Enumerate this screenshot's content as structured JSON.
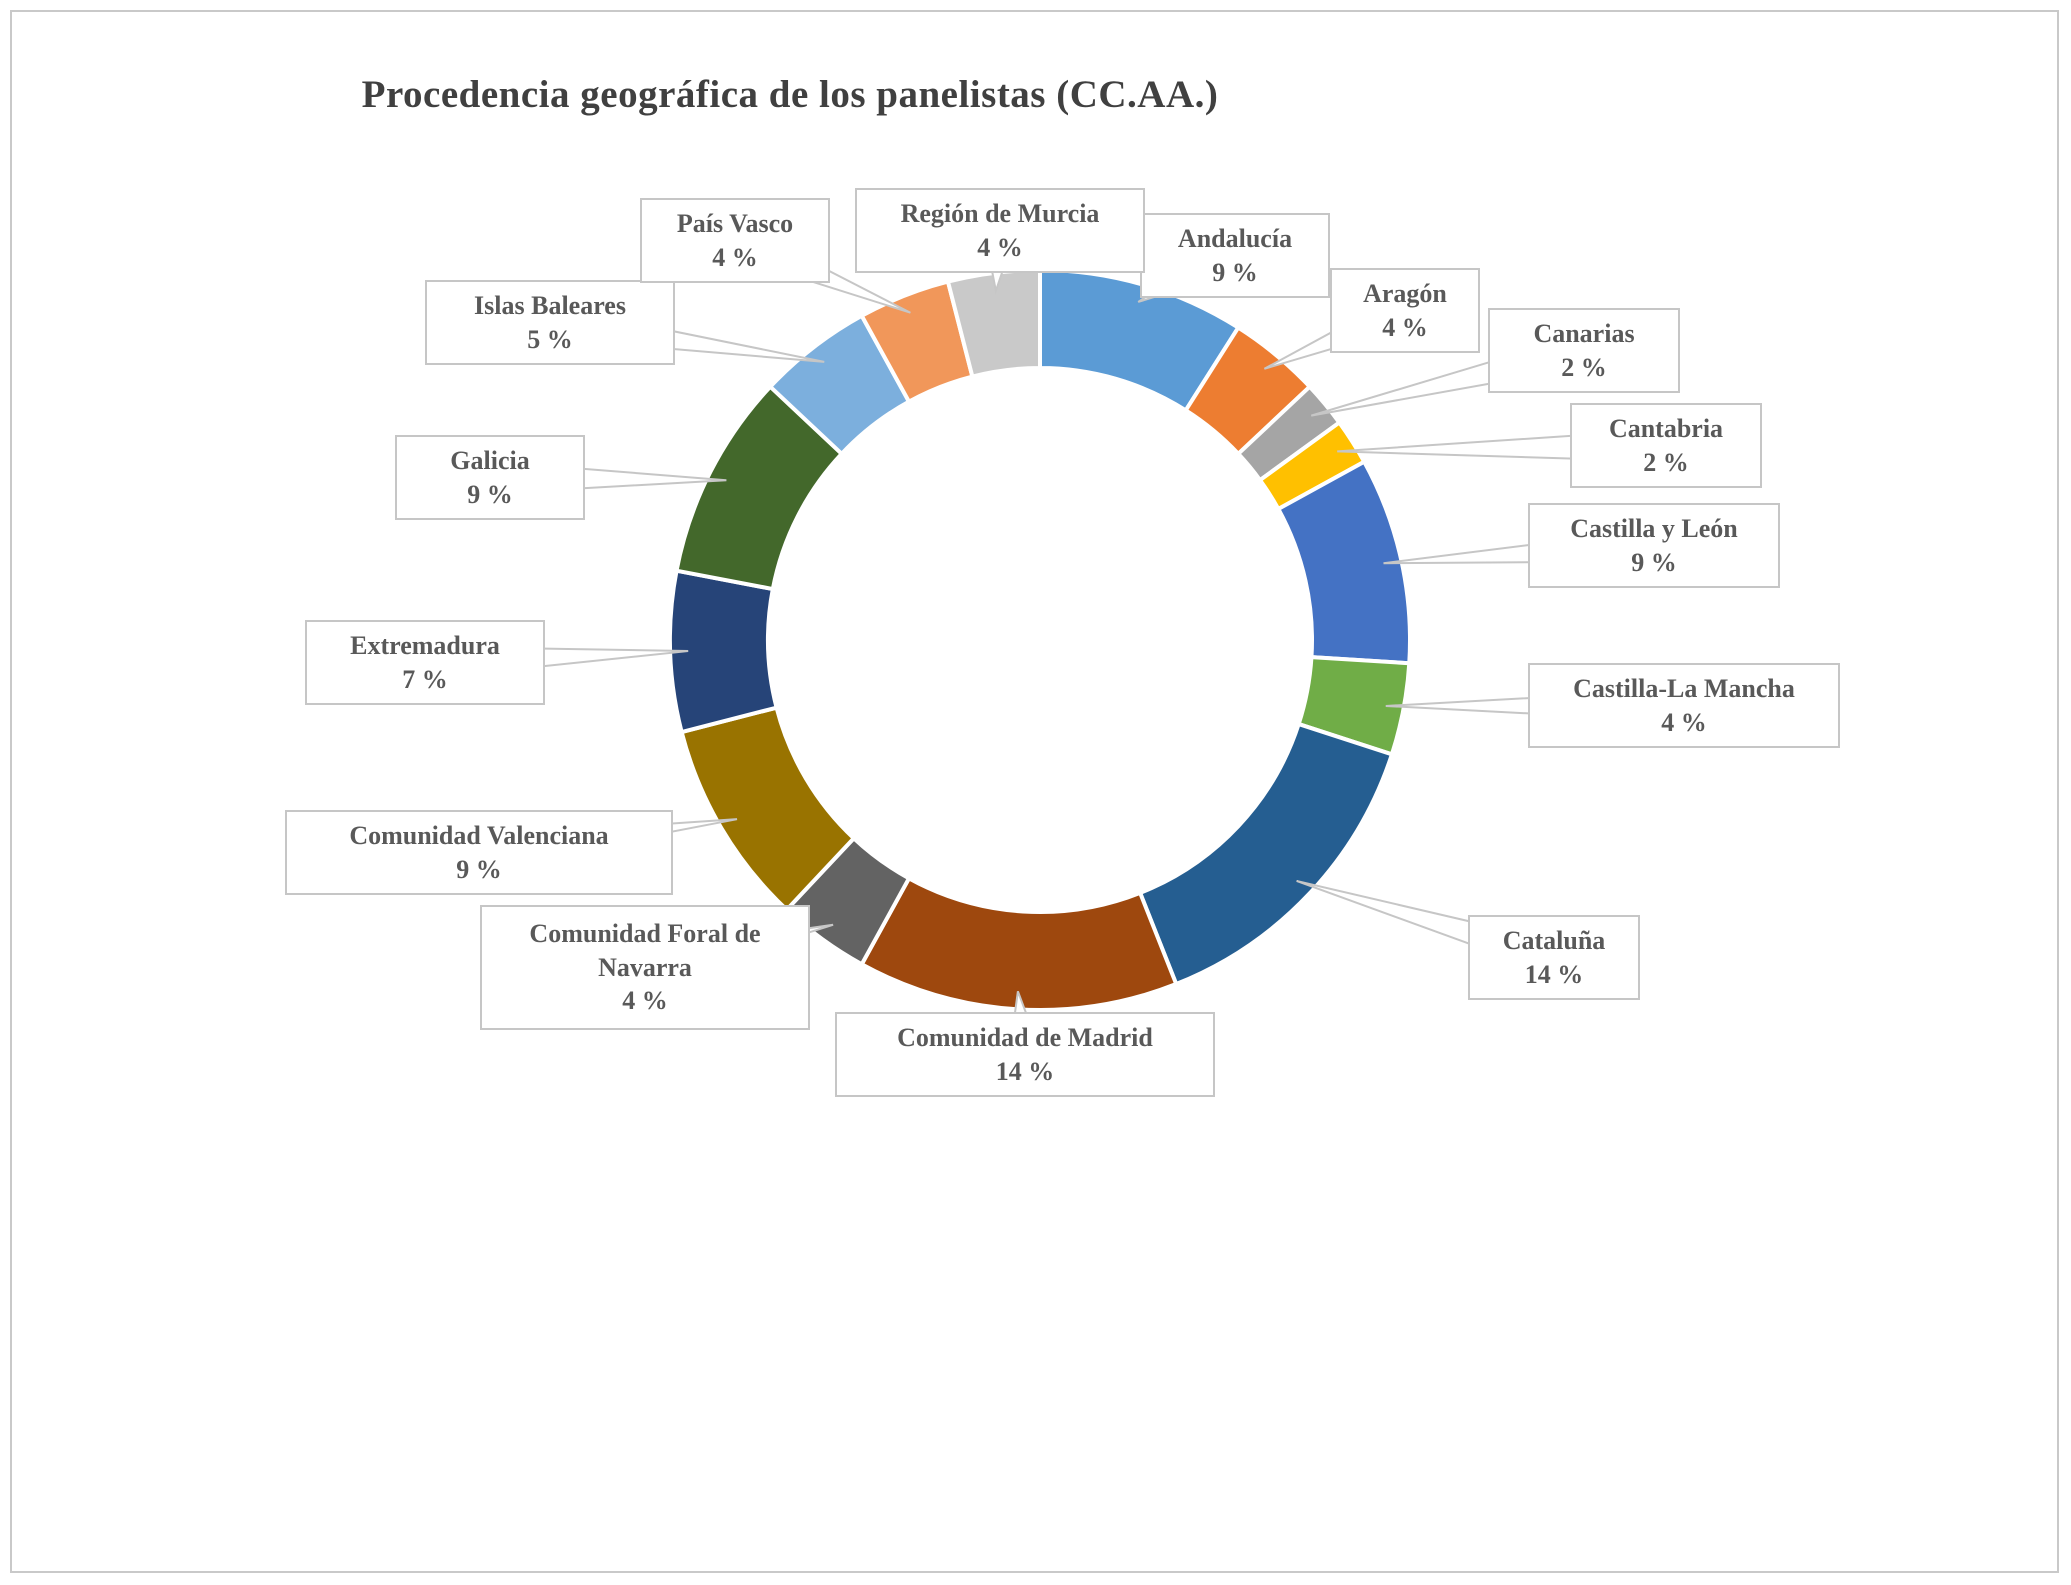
{
  "page": {
    "background": "#ffffff",
    "frame_border_color": "#c9c9c9"
  },
  "chart_data": {
    "type": "pie",
    "subtype": "donut",
    "title": "Procedencia geográfica de los panelistas (CC.AA.)",
    "legend_position": "none",
    "data_labels": "callout-boxes-with-category-and-percent",
    "start_angle_deg": -90,
    "direction": "clockwise",
    "unit": "%",
    "categories": [
      "Andalucía",
      "Aragón",
      "Canarias",
      "Cantabria",
      "Castilla y León",
      "Castilla-La Mancha",
      "Cataluña",
      "Comunidad de Madrid",
      "Comunidad Foral de Navarra",
      "Comunidad Valenciana",
      "Extremadura",
      "Galicia",
      "Islas Baleares",
      "País Vasco",
      "Región de Murcia"
    ],
    "values": [
      9,
      4,
      2,
      2,
      9,
      4,
      14,
      14,
      4,
      9,
      7,
      9,
      5,
      4,
      4
    ],
    "value_labels": [
      "9 %",
      "4 %",
      "2 %",
      "2 %",
      "9 %",
      "4 %",
      "14 %",
      "14 %",
      "4 %",
      "9 %",
      "7 %",
      "9 %",
      "5 %",
      "4 %",
      "4 %"
    ],
    "colors": [
      "#5B9BD5",
      "#ED7D31",
      "#A5A5A5",
      "#FFC000",
      "#4472C4",
      "#70AD47",
      "#255E91",
      "#9E480E",
      "#636363",
      "#997300",
      "#264478",
      "#43682B",
      "#7CAFDD",
      "#F1975A",
      "#C9C9C9"
    ],
    "slice_gap_color": "#ffffff",
    "callout_border_color": "#c6c6c6",
    "label_text_color": "#595959",
    "title_color": "#404040"
  }
}
